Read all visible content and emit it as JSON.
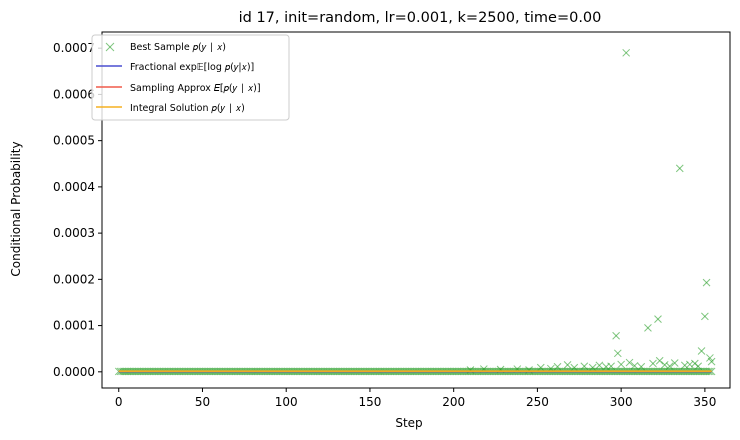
{
  "chart_data": {
    "type": "scatter",
    "title": "id 17, init=random, lr=0.001, k=2500, time=0.00",
    "xlabel": "Step",
    "ylabel": "Conditional Probability",
    "xlim": [
      -10,
      365
    ],
    "ylim": [
      -3.5e-05,
      0.000735
    ],
    "grid": false,
    "legend_position": "top-left",
    "x_ticks": [
      0,
      50,
      100,
      150,
      200,
      250,
      300,
      350
    ],
    "x_tick_labels": [
      "0",
      "50",
      "100",
      "150",
      "200",
      "250",
      "300",
      "350"
    ],
    "y_ticks": [
      0,
      0.0001,
      0.0002,
      0.0003,
      0.0004,
      0.0005,
      0.0006,
      0.0007
    ],
    "y_tick_labels": [
      "0.0000",
      "0.0001",
      "0.0002",
      "0.0003",
      "0.0004",
      "0.0005",
      "0.0006",
      "0.0007"
    ],
    "colors": {
      "best_sample": "#2ca02c",
      "fractional": "#4a4fd0",
      "sampling": "#f05a4a",
      "integral": "#f5b020"
    },
    "series": [
      {
        "name": "Best Sample p(y | x)",
        "kind": "marker-x",
        "points": [
          [
            297,
            7.8e-05
          ],
          [
            298,
            4e-05
          ],
          [
            303,
            0.00069
          ],
          [
            305,
            2e-05
          ],
          [
            316,
            9.5e-05
          ],
          [
            322,
            0.000114
          ],
          [
            335,
            0.00044
          ],
          [
            348,
            4.5e-05
          ],
          [
            350,
            0.00012
          ],
          [
            351,
            0.000193
          ],
          [
            353,
            3e-05
          ],
          [
            354,
            2.2e-05
          ],
          [
            210,
            4e-06
          ],
          [
            218,
            6e-06
          ],
          [
            228,
            5e-06
          ],
          [
            238,
            6e-06
          ],
          [
            245,
            4e-06
          ],
          [
            252,
            9e-06
          ],
          [
            258,
            7e-06
          ],
          [
            262,
            1.1e-05
          ],
          [
            268,
            1.5e-05
          ],
          [
            272,
            9e-06
          ],
          [
            278,
            1.2e-05
          ],
          [
            283,
            9e-06
          ],
          [
            287,
            1.4e-05
          ],
          [
            291,
            1.1e-05
          ],
          [
            294,
            1.2e-05
          ],
          [
            300,
            1.6e-05
          ],
          [
            308,
            1.3e-05
          ],
          [
            312,
            1.1e-05
          ],
          [
            319,
            1.8e-05
          ],
          [
            323,
            2.4e-05
          ],
          [
            326,
            1.5e-05
          ],
          [
            329,
            1.2e-05
          ],
          [
            332,
            1.9e-05
          ],
          [
            338,
            1.4e-05
          ],
          [
            341,
            1.6e-05
          ],
          [
            344,
            1.8e-05
          ],
          [
            346,
            1.2e-05
          ]
        ]
      },
      {
        "name": "Fractional exp𝔼[log p(y|x)]",
        "kind": "line",
        "x": [
          0,
          354
        ],
        "y": [
          5e-07,
          5e-07
        ]
      },
      {
        "name": "Sampling Approx E[p(y | x)]",
        "kind": "line",
        "x": [
          0,
          354
        ],
        "y": [
          1e-06,
          1e-06
        ]
      },
      {
        "name": "Integral Solution p(y | x)",
        "kind": "line",
        "x": [
          0,
          354
        ],
        "y": [
          1.5e-06,
          1.5e-06
        ]
      }
    ]
  },
  "legend": {
    "best_sample_label": "Best Sample 𝑝(𝑦 ∣ 𝑥)",
    "fractional_label": "Fractional exp𝔼[log 𝑝(𝑦|𝑥)]",
    "sampling_label": "Sampling Approx 𝐸[𝑝(𝑦 ∣ 𝑥)]",
    "integral_label": "Integral Solution 𝑝(𝑦 ∣ 𝑥)"
  }
}
